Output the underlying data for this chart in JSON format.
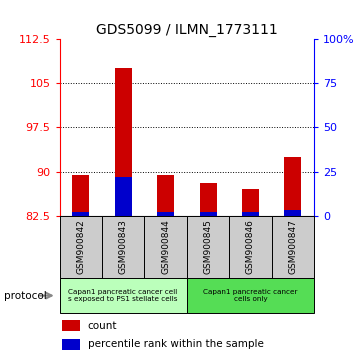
{
  "title": "GDS5099 / ILMN_1773111",
  "samples": [
    "GSM900842",
    "GSM900843",
    "GSM900844",
    "GSM900845",
    "GSM900846",
    "GSM900847"
  ],
  "count_values": [
    89.5,
    107.5,
    89.5,
    88.0,
    87.0,
    92.5
  ],
  "percentile_values": [
    2.0,
    22.0,
    2.0,
    2.0,
    2.0,
    3.5
  ],
  "ylim_left": [
    82.5,
    112.5
  ],
  "ylim_right": [
    0,
    100
  ],
  "yticks_left": [
    82.5,
    90.0,
    97.5,
    105.0,
    112.5
  ],
  "yticks_right": [
    0,
    25,
    50,
    75,
    100
  ],
  "ytick_labels_left": [
    "82.5",
    "90",
    "97.5",
    "105",
    "112.5"
  ],
  "ytick_labels_right": [
    "0",
    "25",
    "50",
    "75",
    "100%"
  ],
  "bar_bottom": 82.5,
  "group1_label": "Capan1 pancreatic cancer cells exposed to PS1 stellate cells",
  "group2_label": "Capan1 pancreatic cancer\ncells only",
  "group1_label_line1": "Capan1 pancreatic cancer cell",
  "group1_label_line2": "s exposed to PS1 stellate cells",
  "protocol_label": "protocol",
  "legend_count_label": "count",
  "legend_percentile_label": "percentile rank within the sample",
  "bar_color": "#cc0000",
  "percentile_color": "#0000cc",
  "group1_color": "#bbffbb",
  "group2_color": "#55dd55",
  "sample_bg_color": "#cccccc",
  "title_fontsize": 10,
  "tick_fontsize": 8,
  "bar_width": 0.4
}
